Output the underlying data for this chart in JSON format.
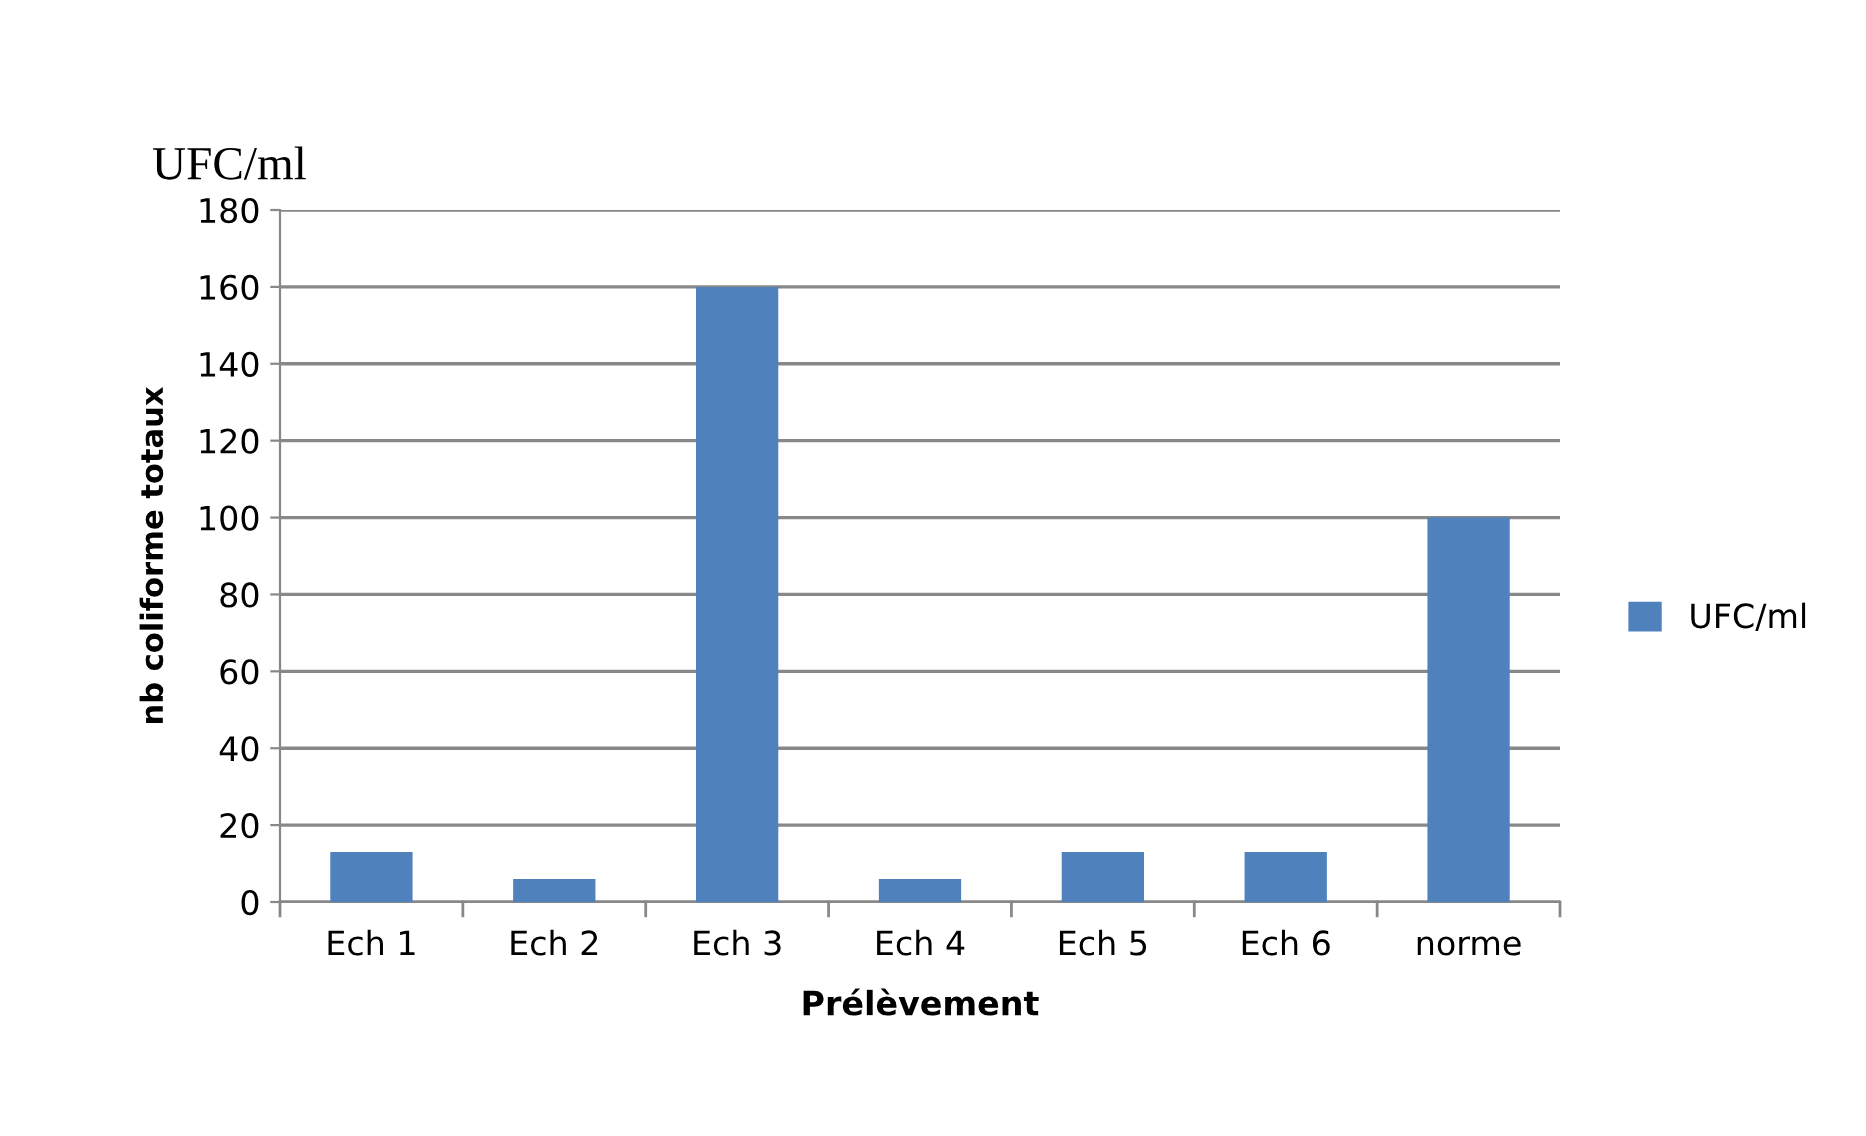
{
  "chart_data": {
    "type": "bar",
    "xlabel": "Prélèvement",
    "ylabel": "nb coliforme totaux",
    "annotations": [
      "UFC/ml"
    ],
    "categories": [
      "Ech 1",
      "Ech 2",
      "Ech 3",
      "Ech 4",
      "Ech 5",
      "Ech 6",
      "norme"
    ],
    "series": [
      {
        "name": "UFC/ml",
        "color": "#4f81bd",
        "values": [
          13,
          6,
          160,
          6,
          13,
          13,
          100
        ]
      }
    ],
    "ylim": [
      0,
      180
    ],
    "yticks": [
      0,
      20,
      40,
      60,
      80,
      100,
      120,
      140,
      160,
      180
    ],
    "grid": "y",
    "legend": "right"
  }
}
